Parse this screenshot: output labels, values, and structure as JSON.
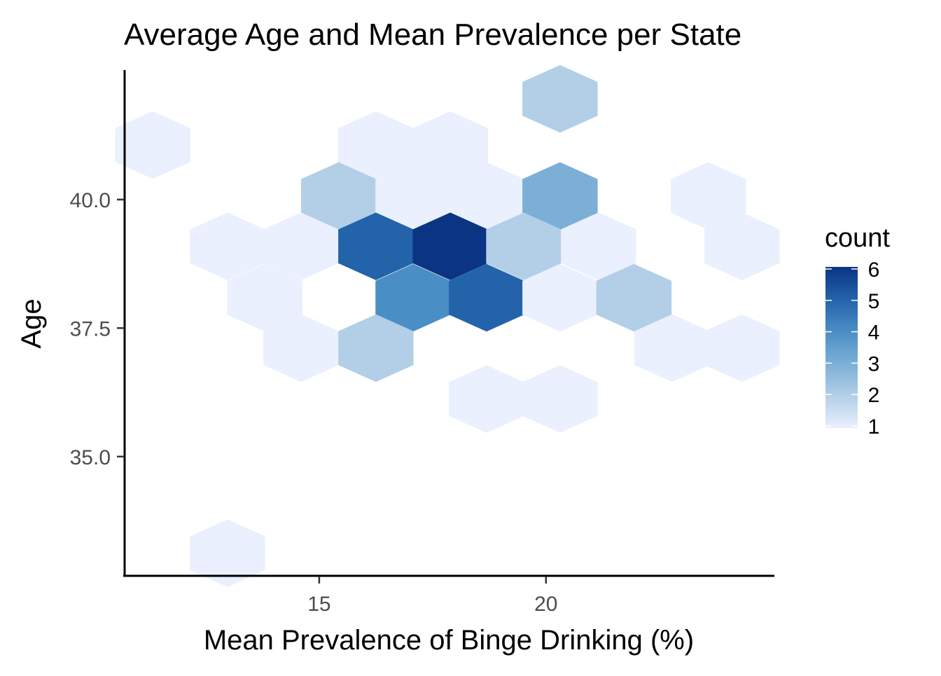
{
  "chart_data": {
    "type": "hexbin",
    "title": "Average Age and Mean Prevalence per State",
    "xlabel": "Mean Prevalence of Binge Drinking (%)",
    "ylabel": "Age",
    "xlim": [
      10.71,
      25.02
    ],
    "ylim": [
      32.68,
      42.52
    ],
    "x_ticks": [
      15,
      20
    ],
    "x_tick_labels": [
      "15",
      "20"
    ],
    "y_ticks": [
      35.0,
      37.5,
      40.0
    ],
    "y_tick_labels": [
      "35.0",
      "37.5",
      "40.0"
    ],
    "grid": false,
    "legend": {
      "title": "count",
      "placement": "right",
      "range": [
        1,
        6
      ],
      "tick_labels": [
        "1",
        "2",
        "3",
        "4",
        "5",
        "6"
      ],
      "low_color": "#eaf0fd",
      "high_color": "#0b3482"
    },
    "bins": [
      {
        "x": 20.31,
        "y": 41.96,
        "count": 2
      },
      {
        "x": 11.33,
        "y": 41.06,
        "count": 1
      },
      {
        "x": 16.25,
        "y": 41.06,
        "count": 1
      },
      {
        "x": 17.89,
        "y": 41.06,
        "count": 1
      },
      {
        "x": 15.43,
        "y": 40.07,
        "count": 2
      },
      {
        "x": 17.07,
        "y": 40.07,
        "count": 1
      },
      {
        "x": 18.69,
        "y": 40.07,
        "count": 1
      },
      {
        "x": 20.31,
        "y": 40.07,
        "count": 3
      },
      {
        "x": 23.58,
        "y": 40.07,
        "count": 1
      },
      {
        "x": 12.98,
        "y": 39.09,
        "count": 1
      },
      {
        "x": 14.6,
        "y": 39.09,
        "count": 1
      },
      {
        "x": 16.25,
        "y": 39.09,
        "count": 5
      },
      {
        "x": 17.89,
        "y": 39.09,
        "count": 6
      },
      {
        "x": 19.51,
        "y": 39.09,
        "count": 2
      },
      {
        "x": 21.16,
        "y": 39.09,
        "count": 1
      },
      {
        "x": 24.32,
        "y": 39.09,
        "count": 1
      },
      {
        "x": 13.8,
        "y": 38.09,
        "count": 1
      },
      {
        "x": 17.07,
        "y": 38.09,
        "count": 4
      },
      {
        "x": 18.69,
        "y": 38.09,
        "count": 5
      },
      {
        "x": 20.31,
        "y": 38.09,
        "count": 1
      },
      {
        "x": 21.94,
        "y": 38.09,
        "count": 2
      },
      {
        "x": 14.6,
        "y": 37.11,
        "count": 1
      },
      {
        "x": 16.25,
        "y": 37.11,
        "count": 2
      },
      {
        "x": 22.78,
        "y": 37.11,
        "count": 1
      },
      {
        "x": 24.32,
        "y": 37.11,
        "count": 1
      },
      {
        "x": 18.69,
        "y": 36.12,
        "count": 1
      },
      {
        "x": 20.31,
        "y": 36.12,
        "count": 1
      },
      {
        "x": 12.98,
        "y": 33.12,
        "count": 1
      }
    ]
  }
}
